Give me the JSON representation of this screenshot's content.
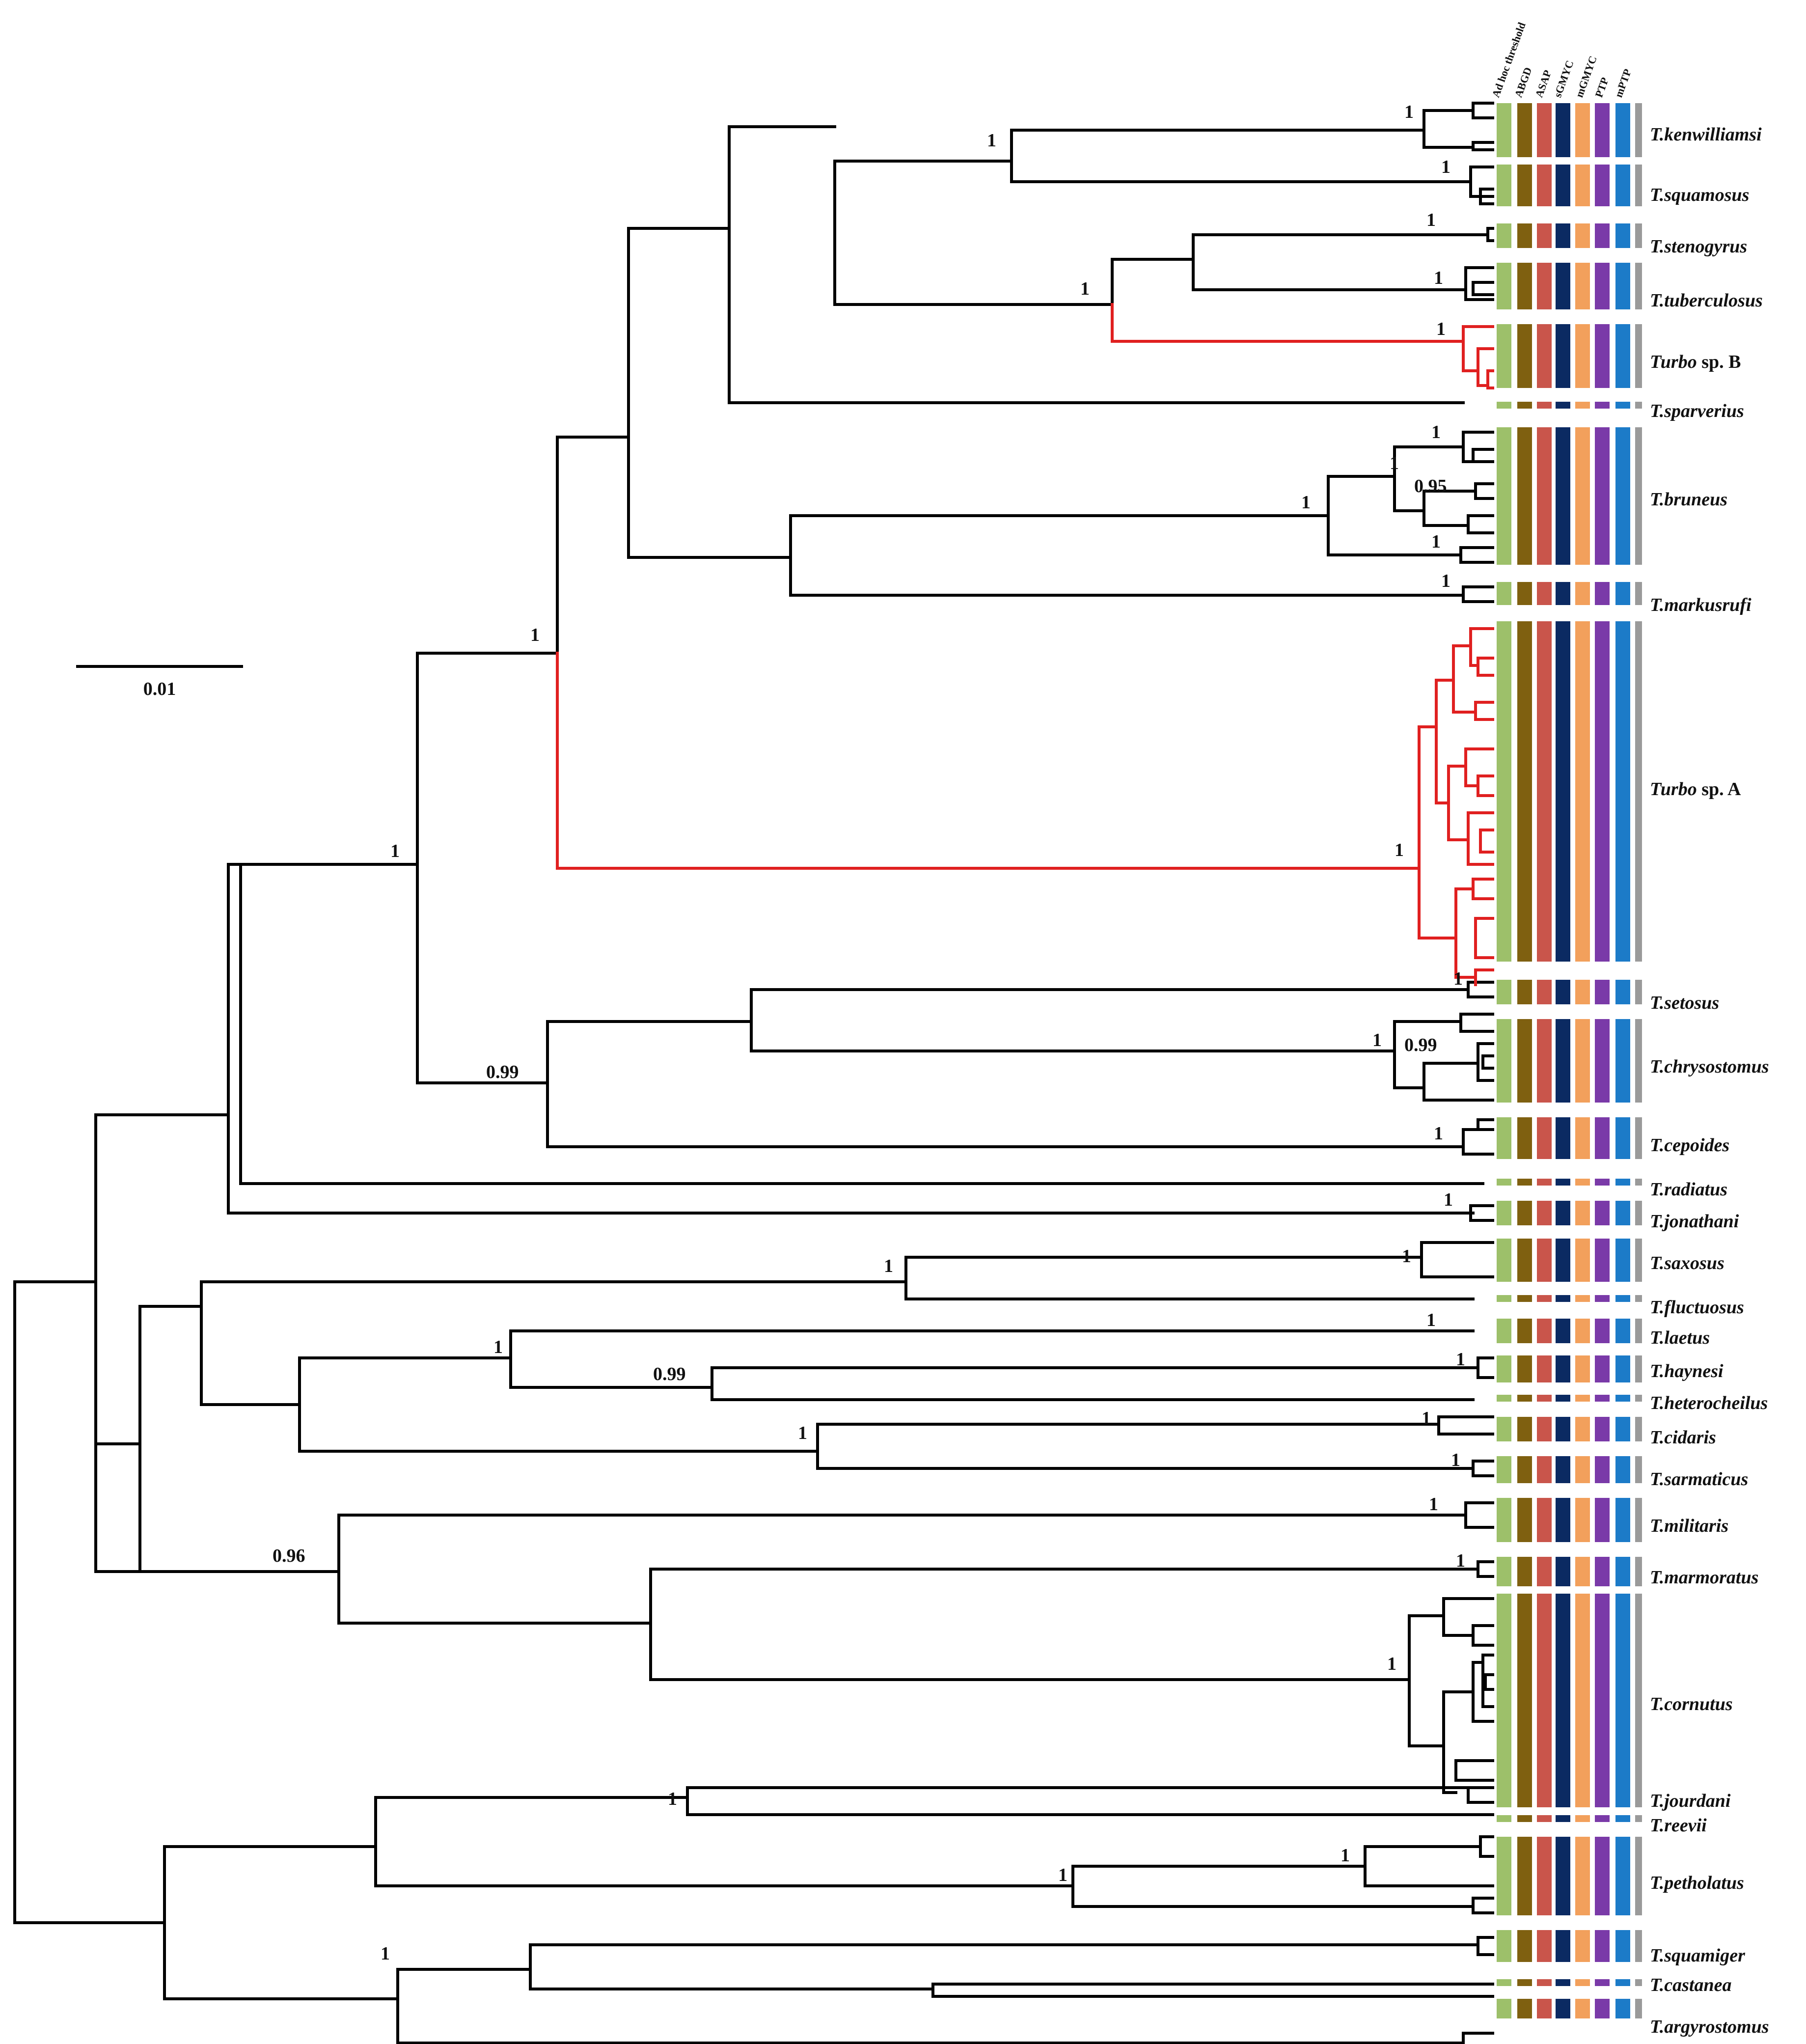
{
  "scale_bar": {
    "label": "0.01"
  },
  "methods": [
    {
      "name": "Ad hoc threshold",
      "color": "#9DC06A"
    },
    {
      "name": "ABGD",
      "color": "#7F6010"
    },
    {
      "name": "ASAP",
      "color": "#C9554B"
    },
    {
      "name": "sGMYC",
      "color": "#0B2A62"
    },
    {
      "name": "mGMYC",
      "color": "#F2A05C"
    },
    {
      "name": "PTP",
      "color": "#7A3AA8"
    },
    {
      "name": "mPTP",
      "color": "#1C7BC8"
    },
    {
      "name": "",
      "color": "#9A9A9A"
    }
  ],
  "taxa": [
    {
      "genus": "T.",
      "epithet": "kenwilliamsi"
    },
    {
      "genus": "T.",
      "epithet": "squamosus"
    },
    {
      "genus": "T.",
      "epithet": "stenogyrus"
    },
    {
      "genus": "T.",
      "epithet": "tuberculosus"
    },
    {
      "genus": "Turbo",
      "epithet": " sp. B"
    },
    {
      "genus": "T.",
      "epithet": "sparverius"
    },
    {
      "genus": "T.",
      "epithet": "bruneus"
    },
    {
      "genus": "T.",
      "epithet": "markusrufi"
    },
    {
      "genus": "Turbo",
      "epithet": " sp. A"
    },
    {
      "genus": "T.",
      "epithet": "setosus"
    },
    {
      "genus": "T.",
      "epithet": "chrysostomus"
    },
    {
      "genus": "T.",
      "epithet": "cepoides"
    },
    {
      "genus": "T.",
      "epithet": "radiatus"
    },
    {
      "genus": "T.",
      "epithet": "jonathani"
    },
    {
      "genus": "T.",
      "epithet": "saxosus"
    },
    {
      "genus": "T.",
      "epithet": "fluctuosus"
    },
    {
      "genus": "T.",
      "epithet": "laetus"
    },
    {
      "genus": "T.",
      "epithet": "haynesi"
    },
    {
      "genus": "T.",
      "epithet": "heterocheilus"
    },
    {
      "genus": "T.",
      "epithet": "cidaris"
    },
    {
      "genus": "T.",
      "epithet": "sarmaticus"
    },
    {
      "genus": "T.",
      "epithet": "militaris"
    },
    {
      "genus": "T.",
      "epithet": "marmoratus"
    },
    {
      "genus": "T.",
      "epithet": "cornutus"
    },
    {
      "genus": "T.",
      "epithet": "jourdani"
    },
    {
      "genus": "T.",
      "epithet": "reevii"
    },
    {
      "genus": "T.",
      "epithet": "petholatus"
    },
    {
      "genus": "T.",
      "epithet": "squamiger"
    },
    {
      "genus": "T.",
      "epithet": "castanea"
    },
    {
      "genus": "T.",
      "epithet": "argyrostomus"
    }
  ],
  "support_values": [
    "1",
    "1",
    "1",
    "1",
    "1",
    "1",
    "1",
    "1",
    "0.95",
    "1",
    "1",
    "1",
    "1",
    "0.99",
    "1",
    "1",
    "0.99",
    "1",
    "1",
    "1",
    "1",
    "1",
    "1",
    "0.99",
    "1",
    "1",
    "1",
    "1",
    "0.96",
    "1",
    "1",
    "1",
    "1",
    "1",
    "1",
    "1",
    "1",
    "1",
    "1"
  ]
}
